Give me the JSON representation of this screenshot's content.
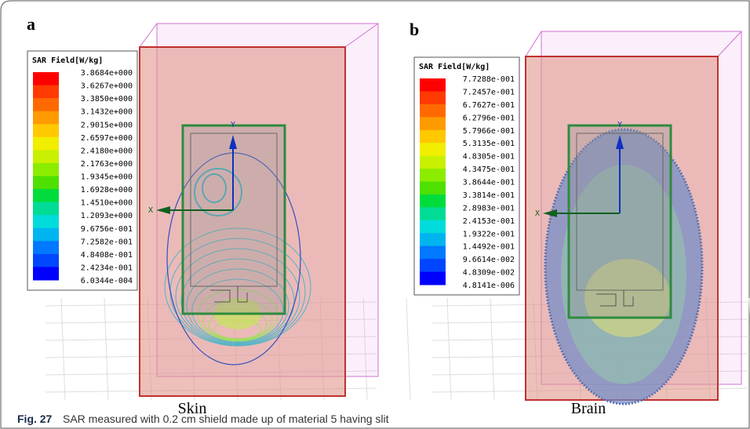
{
  "panels": [
    {
      "label": "a",
      "legend": {
        "title": "SAR Field[W/kg]",
        "values": [
          "3.8684e+000",
          "3.6267e+000",
          "3.3850e+000",
          "3.1432e+000",
          "2.9015e+000",
          "2.6597e+000",
          "2.4180e+000",
          "2.1763e+000",
          "1.9345e+000",
          "1.6928e+000",
          "1.4510e+000",
          "1.2093e+000",
          "9.6756e-001",
          "7.2582e-001",
          "4.8408e-001",
          "2.4234e-001",
          "6.0344e-004"
        ]
      },
      "axes": {
        "x": "X",
        "y": "Y"
      },
      "caption": "Skin"
    },
    {
      "label": "b",
      "legend": {
        "title": "SAR Field[W/kg]",
        "values": [
          "7.7288e-001",
          "7.2457e-001",
          "6.7627e-001",
          "6.2796e-001",
          "5.7966e-001",
          "5.3135e-001",
          "4.8305e-001",
          "4.3475e-001",
          "3.8644e-001",
          "3.3814e-001",
          "2.8983e-001",
          "2.4153e-001",
          "1.9322e-001",
          "1.4492e-001",
          "9.6614e-002",
          "4.8309e-002",
          "4.8141e-006"
        ]
      },
      "axes": {
        "x": "X",
        "y": "Y"
      },
      "caption": "Brain"
    }
  ],
  "figure": {
    "label": "Fig. 27",
    "caption": "SAR measured with 0.2 cm shield made up of material 5 having slit"
  }
}
